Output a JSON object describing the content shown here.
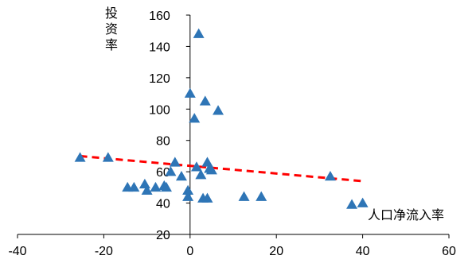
{
  "chart_data": {
    "type": "scatter",
    "xlabel": "人口净流入率",
    "ylabel": "投资率",
    "xlim": [
      -40,
      60
    ],
    "ylim": [
      20,
      160
    ],
    "x_ticks": [
      -40,
      -20,
      0,
      20,
      40,
      60
    ],
    "y_ticks": [
      20,
      40,
      60,
      80,
      100,
      120,
      140,
      160
    ],
    "grid": false,
    "marker": "triangle",
    "colors": {
      "points": "#2E75B6",
      "trendline": "#FF0000"
    },
    "series": [
      {
        "points": [
          {
            "x": -25.5,
            "y": 69
          },
          {
            "x": -19,
            "y": 69
          },
          {
            "x": -14.5,
            "y": 50
          },
          {
            "x": -13,
            "y": 50
          },
          {
            "x": -10.5,
            "y": 52
          },
          {
            "x": -10,
            "y": 48
          },
          {
            "x": -8,
            "y": 50
          },
          {
            "x": -6,
            "y": 51
          },
          {
            "x": -5.5,
            "y": 50
          },
          {
            "x": -4.5,
            "y": 60
          },
          {
            "x": -3.5,
            "y": 66
          },
          {
            "x": -2,
            "y": 57
          },
          {
            "x": -0.5,
            "y": 48
          },
          {
            "x": -0.5,
            "y": 44
          },
          {
            "x": 0,
            "y": 110
          },
          {
            "x": 1,
            "y": 94
          },
          {
            "x": 2,
            "y": 148
          },
          {
            "x": 1.5,
            "y": 63
          },
          {
            "x": 2.5,
            "y": 58
          },
          {
            "x": 3,
            "y": 43
          },
          {
            "x": 3.5,
            "y": 105
          },
          {
            "x": 4,
            "y": 43
          },
          {
            "x": 4,
            "y": 66
          },
          {
            "x": 4.5,
            "y": 62
          },
          {
            "x": 5,
            "y": 61
          },
          {
            "x": 6.5,
            "y": 99
          },
          {
            "x": 12.5,
            "y": 44
          },
          {
            "x": 16.5,
            "y": 44
          },
          {
            "x": 32.5,
            "y": 57
          },
          {
            "x": 37.5,
            "y": 39
          },
          {
            "x": 40,
            "y": 40
          }
        ]
      }
    ],
    "trendline": {
      "style": "dashed",
      "x": [
        -25.5,
        40
      ],
      "y": [
        70,
        54
      ]
    }
  }
}
